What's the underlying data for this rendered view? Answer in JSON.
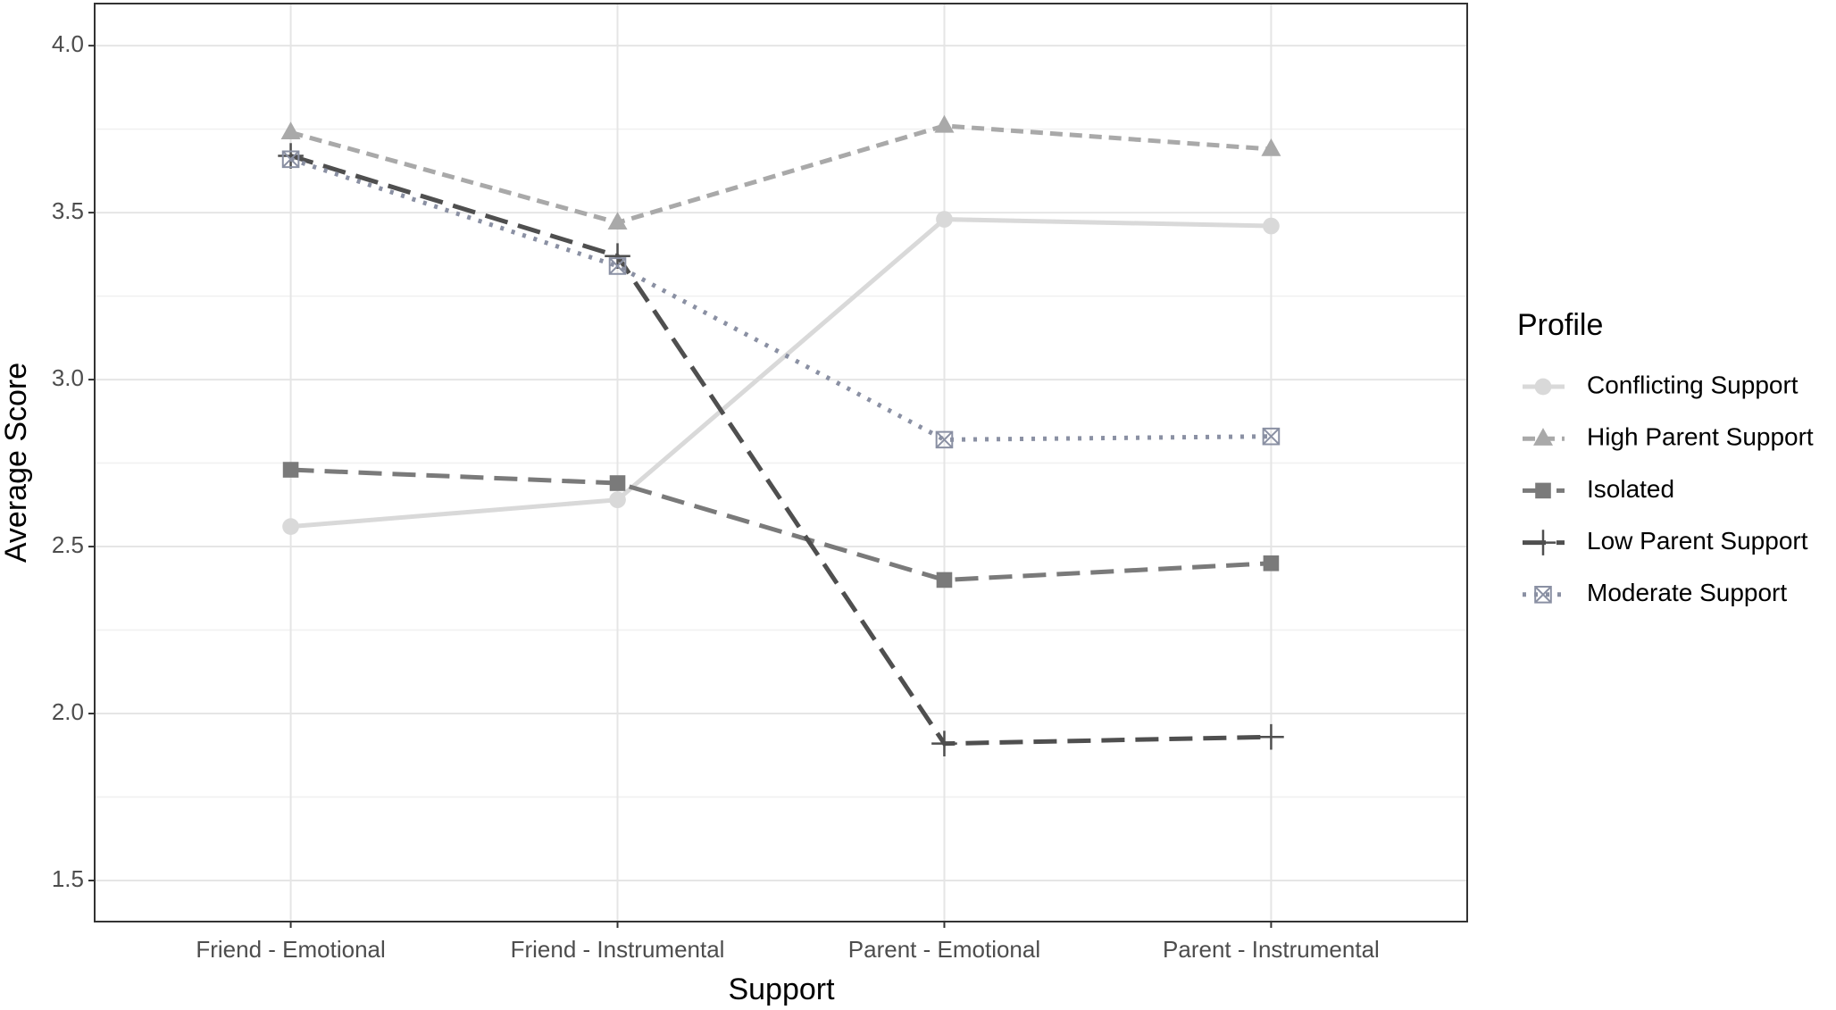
{
  "chart_data": {
    "type": "line",
    "x_label": "Support",
    "y_label": "Average Score",
    "categories": [
      "Friend - Emotional",
      "Friend - Instrumental",
      "Parent - Emotional",
      "Parent - Instrumental"
    ],
    "series": [
      {
        "name": "Conflicting Support",
        "color": "#d9d9d9",
        "linetype": "solid",
        "shape": "circle",
        "values": [
          2.56,
          2.64,
          3.48,
          3.46
        ]
      },
      {
        "name": "High Parent Support",
        "color": "#a9a9a9",
        "linetype": "dashed",
        "shape": "triangle",
        "values": [
          3.74,
          3.47,
          3.76,
          3.69
        ]
      },
      {
        "name": "Isolated",
        "color": "#7a7a7a",
        "linetype": "longdash",
        "shape": "square",
        "values": [
          2.73,
          2.69,
          2.4,
          2.45
        ]
      },
      {
        "name": "Low Parent Support",
        "color": "#4f4f4f",
        "linetype": "longdash",
        "shape": "plus",
        "values": [
          3.67,
          3.37,
          1.91,
          1.93
        ]
      },
      {
        "name": "Moderate Support",
        "color": "#8a90a3",
        "linetype": "dotted",
        "shape": "boxcross",
        "values": [
          3.66,
          3.34,
          2.82,
          2.83
        ]
      }
    ],
    "ylim": [
      1.377,
      4.126
    ],
    "yticks": [
      1.5,
      {
        "value": 2,
        "label": "2.0"
      },
      2.5,
      {
        "value": 3,
        "label": "3.0"
      },
      3.5,
      {
        "value": 4,
        "label": "4.0"
      }
    ],
    "grid": true,
    "minor_grid": true,
    "legend_title": "Profile",
    "legend": "right"
  }
}
